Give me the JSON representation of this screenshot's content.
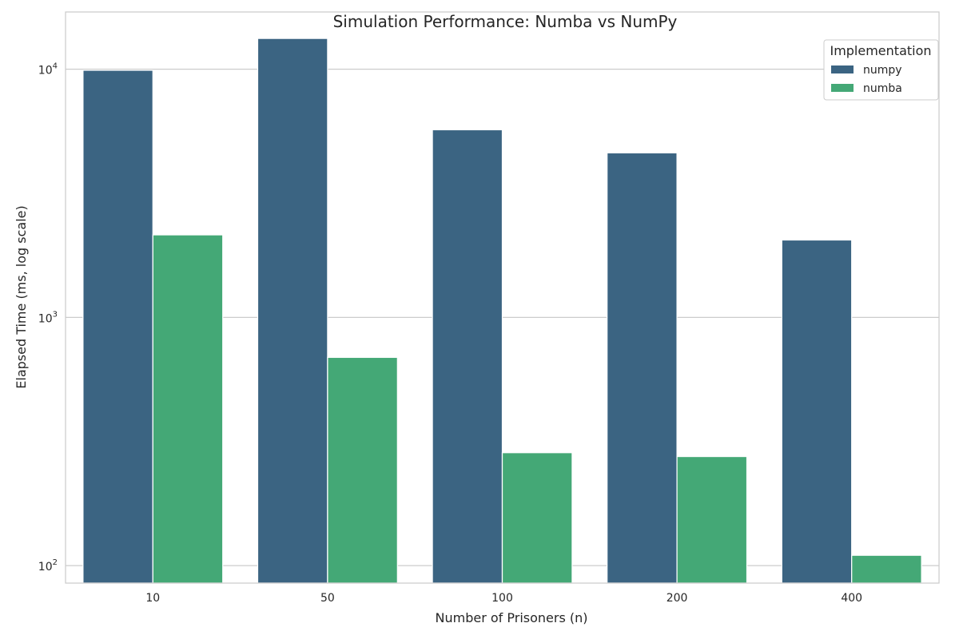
{
  "chart_data": {
    "type": "bar",
    "title": "Simulation Performance: Numba vs NumPy",
    "xlabel": "Number of Prisoners (n)",
    "ylabel": "Elapsed Time (ms, log scale)",
    "yscale": "log",
    "ylim": [
      85,
      17000
    ],
    "y_ticks": [
      {
        "value": 100,
        "base": "10",
        "exp": "2"
      },
      {
        "value": 1000,
        "base": "10",
        "exp": "3"
      },
      {
        "value": 10000,
        "base": "10",
        "exp": "4"
      }
    ],
    "grid": "horizontal",
    "categories": [
      "10",
      "50",
      "100",
      "200",
      "400"
    ],
    "legend": {
      "title": "Implementation",
      "placement": "top-right"
    },
    "series": [
      {
        "name": "numpy",
        "color": "#3b6482",
        "values": [
          9900,
          13300,
          5700,
          4600,
          2050
        ]
      },
      {
        "name": "numba",
        "color": "#44a876",
        "values": [
          2150,
          690,
          285,
          275,
          110
        ]
      }
    ]
  }
}
